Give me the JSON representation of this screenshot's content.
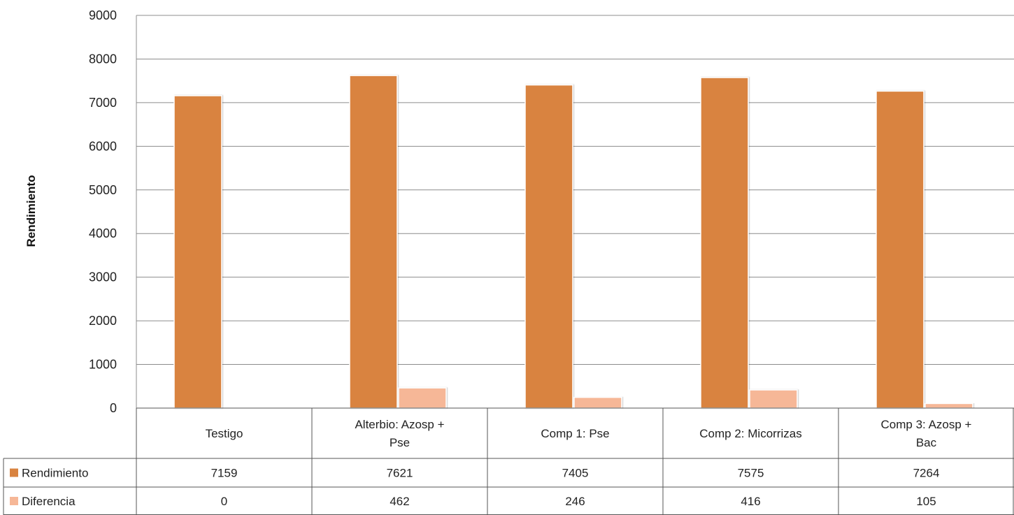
{
  "chart_data": {
    "type": "bar",
    "ylabel": "Rendimiento",
    "xlabel": "",
    "ylim": [
      0,
      9000
    ],
    "yticks": [
      0,
      1000,
      2000,
      3000,
      4000,
      5000,
      6000,
      7000,
      8000,
      9000
    ],
    "grid": true,
    "categories": [
      [
        "Testigo"
      ],
      [
        "Alterbio: Azosp +",
        "Pse"
      ],
      [
        "Comp 1: Pse"
      ],
      [
        "Comp 2: Micorrizas"
      ],
      [
        "Comp 3: Azosp +",
        "Bac"
      ]
    ],
    "series": [
      {
        "name": "Rendimiento",
        "color": "#d98340",
        "values": [
          7159,
          7621,
          7405,
          7575,
          7264
        ]
      },
      {
        "name": "Diferencia",
        "color": "#f6b797",
        "values": [
          0,
          462,
          246,
          416,
          105
        ]
      }
    ],
    "legend": "data-table"
  }
}
